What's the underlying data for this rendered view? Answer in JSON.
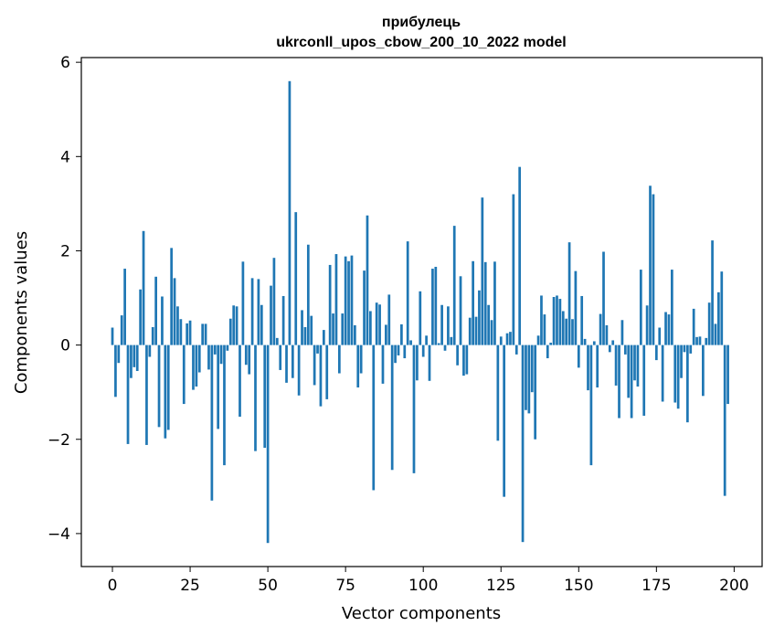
{
  "chart_data": {
    "type": "bar",
    "title_line1": "прибулець",
    "title_line2": "ukrconll_upos_cbow_200_10_2022 model",
    "xlabel": "Vector components",
    "ylabel": "Components values",
    "xlim": [
      -10,
      209
    ],
    "ylim": [
      -4.7,
      6.1
    ],
    "xticks": [
      0,
      25,
      50,
      75,
      100,
      125,
      150,
      175,
      200
    ],
    "yticks": [
      -4,
      -2,
      0,
      2,
      4,
      6
    ],
    "ytick_labels": [
      "−4",
      "−2",
      "0",
      "2",
      "4",
      "6"
    ],
    "bar_color": "#1f77b4",
    "grid": false,
    "values": [
      0.37,
      -1.1,
      -0.38,
      0.63,
      1.62,
      -2.1,
      -0.7,
      -0.47,
      -0.55,
      1.18,
      2.42,
      -2.12,
      -0.25,
      0.38,
      1.45,
      -1.74,
      1.03,
      -1.98,
      -1.8,
      2.06,
      1.42,
      0.82,
      0.55,
      -1.25,
      0.46,
      0.52,
      -0.95,
      -0.88,
      -0.58,
      0.45,
      0.45,
      -0.52,
      -3.3,
      -0.2,
      -1.78,
      -0.4,
      -2.55,
      -0.12,
      0.56,
      0.84,
      0.82,
      -1.52,
      1.77,
      -0.42,
      -0.62,
      1.42,
      -2.25,
      1.4,
      0.85,
      -2.18,
      -4.2,
      1.26,
      1.85,
      0.15,
      -0.53,
      1.04,
      -0.8,
      5.6,
      -0.7,
      2.82,
      -1.07,
      0.74,
      0.38,
      2.13,
      0.62,
      -0.85,
      -0.18,
      -1.3,
      0.32,
      -1.15,
      1.7,
      0.67,
      1.93,
      -0.6,
      0.67,
      1.88,
      1.78,
      1.9,
      0.42,
      -0.9,
      -0.6,
      1.58,
      2.75,
      0.72,
      -3.08,
      0.9,
      0.86,
      -0.82,
      0.43,
      1.07,
      -2.65,
      -0.38,
      -0.22,
      0.44,
      -0.28,
      2.2,
      0.1,
      -2.72,
      -0.75,
      1.14,
      -0.25,
      0.2,
      -0.76,
      1.62,
      1.66,
      0.04,
      0.85,
      -0.12,
      0.82,
      0.17,
      2.53,
      -0.43,
      1.46,
      -0.65,
      -0.62,
      0.58,
      1.78,
      0.6,
      1.16,
      3.13,
      1.76,
      0.85,
      0.53,
      1.77,
      -2.03,
      0.18,
      -3.22,
      0.25,
      0.28,
      3.2,
      -0.2,
      3.78,
      -4.18,
      -1.38,
      -1.45,
      -1.0,
      -2.0,
      0.2,
      1.05,
      0.65,
      -0.28,
      0.05,
      1.02,
      1.05,
      0.98,
      0.72,
      0.56,
      2.18,
      0.55,
      1.57,
      -0.48,
      1.04,
      0.13,
      -0.96,
      -2.55,
      0.08,
      -0.9,
      0.66,
      1.98,
      0.42,
      -0.15,
      0.1,
      -0.86,
      -1.55,
      0.53,
      -0.2,
      -1.12,
      -1.55,
      -0.75,
      -0.88,
      1.6,
      -1.5,
      0.84,
      3.38,
      3.2,
      -0.32,
      0.37,
      -1.2,
      0.7,
      0.65,
      1.6,
      -1.22,
      -1.35,
      -0.7,
      -0.15,
      -1.64,
      -0.18,
      0.77,
      0.17,
      0.18,
      -1.08,
      0.15,
      0.9,
      2.22,
      0.45,
      1.12,
      1.56,
      -3.2,
      -1.25
    ]
  }
}
